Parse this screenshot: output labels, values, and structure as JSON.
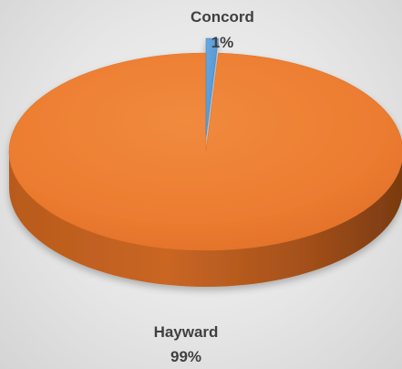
{
  "chart_data": {
    "type": "pie",
    "title": "",
    "slices": [
      {
        "label": "Concord",
        "percent_label": "1%",
        "value": 1,
        "color": "#5b9bd5"
      },
      {
        "label": "Hayward",
        "percent_label": "99%",
        "value": 99,
        "color": "#ed7d31"
      }
    ],
    "three_d": true,
    "legend": "none"
  }
}
